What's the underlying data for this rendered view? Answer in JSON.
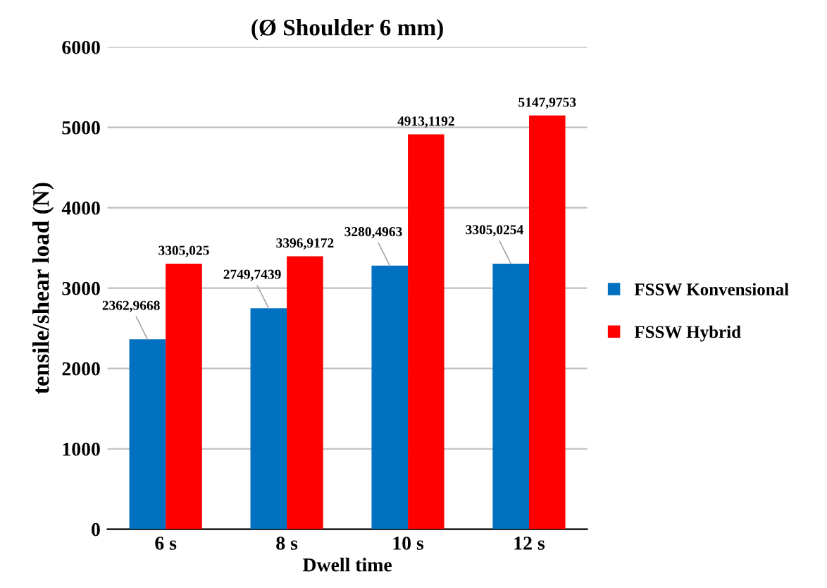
{
  "chart_data": {
    "type": "bar",
    "title": "(Ø Shoulder 6 mm)",
    "xlabel": "Dwell time",
    "ylabel": "tensile/shear load (N)",
    "categories": [
      "6 s",
      "8 s",
      "10 s",
      "12 s"
    ],
    "series": [
      {
        "name": "FSSW Konvensional",
        "color": "#0070c0",
        "values": [
          2362.9668,
          2749.7439,
          3280.4963,
          3305.0254
        ],
        "value_labels": [
          "2362,9668",
          "2749,7439",
          "3280,4963",
          "3305,0254"
        ]
      },
      {
        "name": "FSSW Hybrid",
        "color": "#ff0000",
        "values": [
          3305.025,
          3396.9172,
          4913.1192,
          5147.9753
        ],
        "value_labels": [
          "3305,025",
          "3396,9172",
          "4913,1192",
          "5147,9753"
        ]
      }
    ],
    "ylim": [
      0,
      6000
    ],
    "yticks": [
      0,
      1000,
      2000,
      3000,
      4000,
      5000,
      6000
    ],
    "grid": "y",
    "legend": "right"
  }
}
